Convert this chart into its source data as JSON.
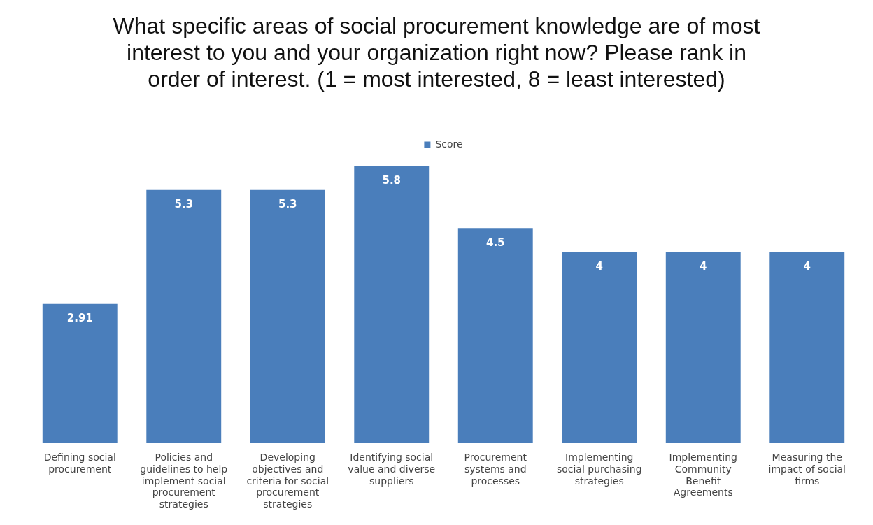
{
  "chart_data": {
    "type": "bar",
    "title": "What specific areas of social procurement knowledge are of most interest to you and your organization right now? Please rank in order of interest. (1 = most interested, 8 = least interested)",
    "categories": [
      "Defining social procurement",
      "Policies and guidelines to help implement social procurement strategies",
      "Developing objectives and criteria for social procurement strategies",
      "Identifying social value and diverse suppliers",
      "Procurement systems and processes",
      "Implementing social purchasing strategies",
      "Implementing Community Benefit Agreements",
      "Measuring the impact of social firms"
    ],
    "series": [
      {
        "name": "Score",
        "color": "#4a7ebb",
        "values": [
          2.91,
          5.3,
          5.3,
          5.8,
          4.5,
          4,
          4,
          4
        ]
      }
    ],
    "data_labels": true,
    "legend": "top",
    "grid": false
  }
}
